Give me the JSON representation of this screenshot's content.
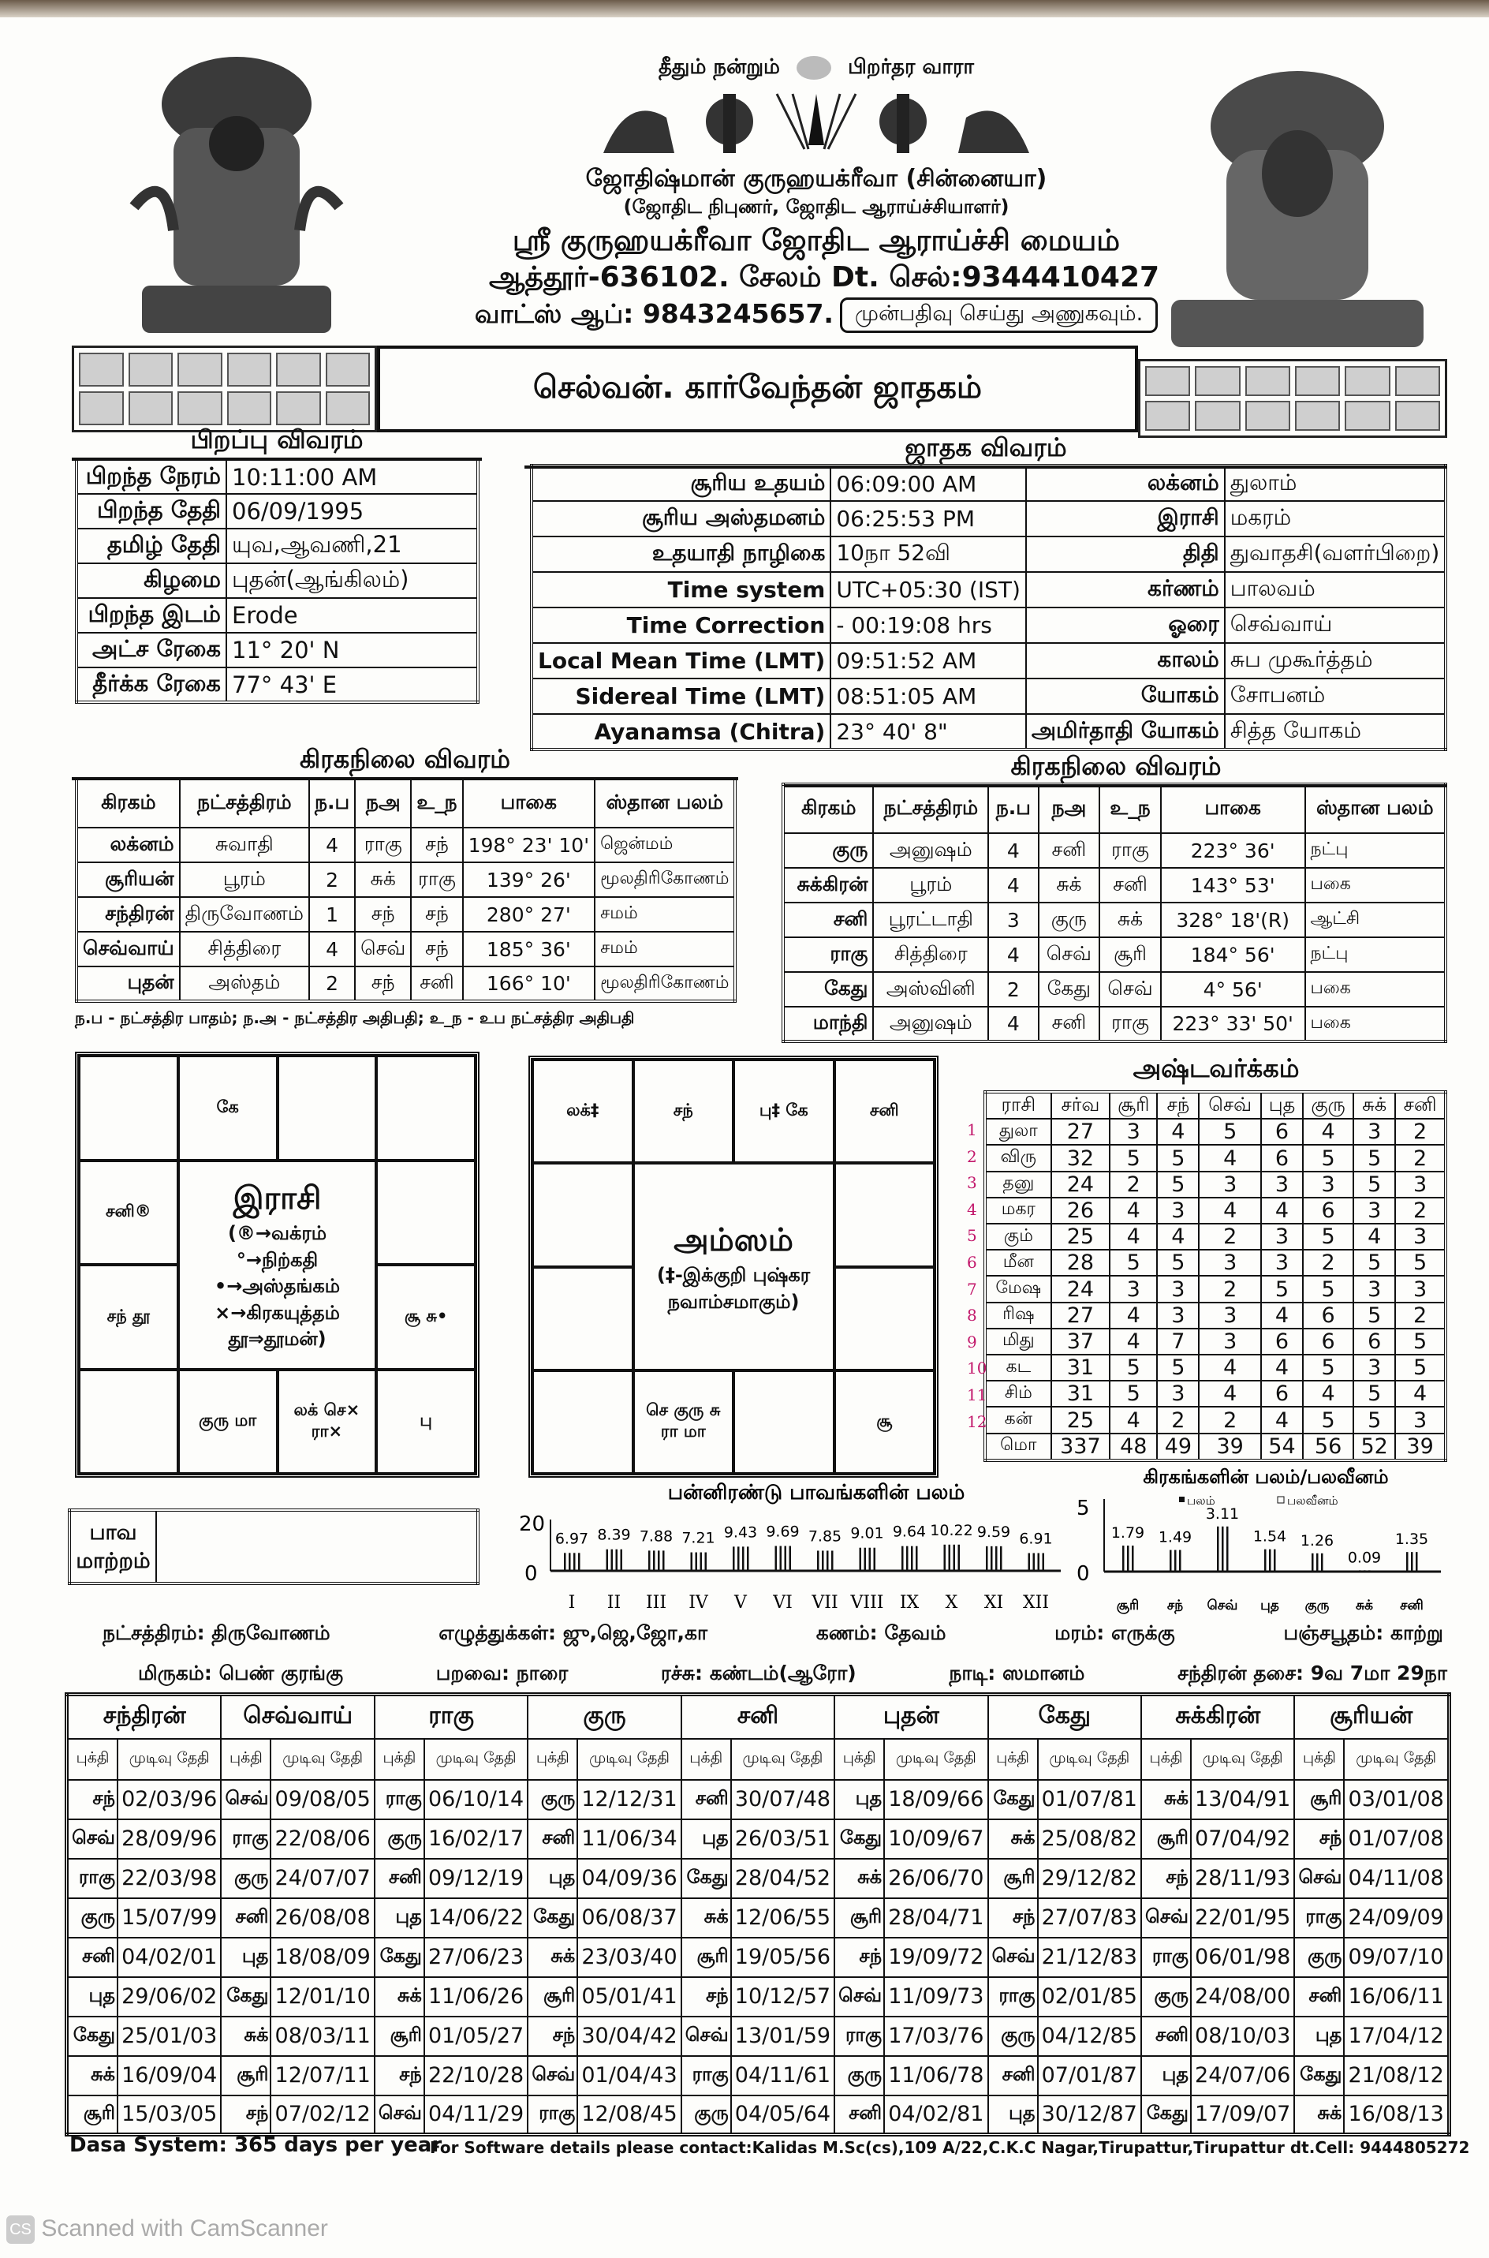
{
  "header": {
    "motto_left": "தீதும் நன்றும்",
    "motto_right": "பிறர்தர வாரா",
    "astrologer": "ஜோதிஷ்மான் குருஹயக்ரீவா (சின்னையா)",
    "qualifications": "(ஜோதிட நிபுணர், ஜோதிட ஆராய்ச்சியாளர்)",
    "center_name": "ஸ்ரீ குருஹயக்ரீவா ஜோதிட ஆராய்ச்சி மையம்",
    "address": "ஆத்தூர்-636102. சேலம் Dt. செல்:9344410427",
    "whatsapp": "வாட்ஸ் ஆப்: 9843245657.",
    "appointment_note": "முன்பதிவு செய்து அணுகவும்."
  },
  "title": "செல்வன். கார்வேந்தன் ஜாதகம்",
  "birth": {
    "heading": "பிறப்பு விவரம்",
    "rows": [
      [
        "பிறந்த நேரம்",
        "10:11:00 AM"
      ],
      [
        "பிறந்த தேதி",
        "06/09/1995"
      ],
      [
        "தமிழ் தேதி",
        "யுவ,ஆவணி,21"
      ],
      [
        "கிழமை",
        "புதன்(ஆங்கிலம்)"
      ],
      [
        "பிறந்த இடம்",
        "Erode"
      ],
      [
        "அட்ச ரேகை",
        "11° 20' N"
      ],
      [
        "தீர்க்க ரேகை",
        "77° 43' E"
      ]
    ]
  },
  "jathaka": {
    "heading": "ஜாதக விவரம்",
    "rows": [
      [
        "சூரிய உதயம்",
        "06:09:00 AM",
        "லக்னம்",
        "துலாம்"
      ],
      [
        "சூரிய அஸ்தமனம்",
        "06:25:53 PM",
        "இராசி",
        "மகரம்"
      ],
      [
        "உதயாதி நாழிகை",
        "10நா 52வி",
        "திதி",
        "துவாதசி(வளர்பிறை)"
      ],
      [
        "Time system",
        "UTC+05:30 (IST)",
        "கர்ணம்",
        "பாலவம்"
      ],
      [
        "Time Correction",
        "- 00:19:08 hrs",
        "ஓரை",
        "செவ்வாய்"
      ],
      [
        "Local Mean Time (LMT)",
        "09:51:52 AM",
        "காலம்",
        "சுப முகூர்த்தம்"
      ],
      [
        "Sidereal Time (LMT)",
        "08:51:05 AM",
        "யோகம்",
        "சோபனம்"
      ],
      [
        "Ayanamsa (Chitra)",
        "23° 40' 8\"",
        "அமிர்தாதி யோகம்",
        "சித்த யோகம்"
      ]
    ]
  },
  "graha_left": {
    "heading": "கிரகநிலை விவரம்",
    "columns": [
      "கிரகம்",
      "நட்சத்திரம்",
      "ந.ப",
      "நஅ",
      "உ_ந",
      "பாகை",
      "ஸ்தான பலம்"
    ],
    "rows": [
      [
        "லக்னம்",
        "சுவாதி",
        "4",
        "ராகு",
        "சந்",
        "198° 23' 10'",
        "ஜென்மம்"
      ],
      [
        "சூரியன்",
        "பூரம்",
        "2",
        "சுக்",
        "ராகு",
        "139° 26'",
        "மூலதிரிகோணம்"
      ],
      [
        "சந்திரன்",
        "திருவோணம்",
        "1",
        "சந்",
        "சந்",
        "280° 27'",
        "சமம்"
      ],
      [
        "செவ்வாய்",
        "சித்திரை",
        "4",
        "செவ்",
        "சந்",
        "185° 36'",
        "சமம்"
      ],
      [
        "புதன்",
        "அஸ்தம்",
        "2",
        "சந்",
        "சனி",
        "166° 10'",
        "மூலதிரிகோணம்"
      ]
    ],
    "footnote": "ந.ப - நட்சத்திர பாதம்; ந.அ - நட்சத்திர அதிபதி; உ_ந - உப நட்சத்திர அதிபதி"
  },
  "graha_right": {
    "heading": "கிரகநிலை விவரம்",
    "columns": [
      "கிரகம்",
      "நட்சத்திரம்",
      "ந.ப",
      "நஅ",
      "உ_ந",
      "பாகை",
      "ஸ்தான பலம்"
    ],
    "rows": [
      [
        "குரு",
        "அனுஷம்",
        "4",
        "சனி",
        "ராகு",
        "223° 36'",
        "நட்பு"
      ],
      [
        "சுக்கிரன்",
        "பூரம்",
        "4",
        "சுக்",
        "சனி",
        "143° 53'",
        "பகை"
      ],
      [
        "சனி",
        "பூரட்டாதி",
        "3",
        "குரு",
        "சுக்",
        "328° 18'(R)",
        "ஆட்சி"
      ],
      [
        "ராகு",
        "சித்திரை",
        "4",
        "செவ்",
        "சூரி",
        "184° 56'",
        "நட்பு"
      ],
      [
        "கேது",
        "அஸ்வினி",
        "2",
        "கேது",
        "செவ்",
        "4° 56'",
        "பகை"
      ],
      [
        "மாந்தி",
        "அனுஷம்",
        "4",
        "சனி",
        "ராகு",
        "223° 33' 50'",
        "பகை"
      ]
    ]
  },
  "rasi": {
    "title": "இராசி",
    "legend": [
      "(®→வக்ரம்",
      "°→நிற்கதி",
      "•→அஸ்தங்கம்",
      "×→கிரகயுத்தம்",
      "தூ⇒தூமன்)"
    ],
    "houses": [
      "கே",
      "",
      "",
      "",
      "சூ சு•",
      "பு",
      "லக் செ× ரா×",
      "குரு மா",
      "",
      "சந் தூ",
      "சனி®",
      ""
    ]
  },
  "amsam": {
    "title": "அம்ஸம்",
    "legend": [
      "(‡-இக்குறி புஷ்கர",
      "நவாம்சமாகும்)"
    ],
    "houses": [
      "சந்",
      "பு‡ கே",
      "சனி",
      "",
      "",
      "சூ",
      "",
      "செ குரு சு ரா மா",
      "",
      "",
      "",
      "லக்‡"
    ]
  },
  "ashtavarga": {
    "heading": "அஷ்டவர்க்கம்",
    "columns": [
      "ராசி",
      "சர்வ",
      "சூரி",
      "சந்",
      "செவ்",
      "புத",
      "குரு",
      "சுக்",
      "சனி"
    ],
    "rows": [
      [
        "துலா",
        "27",
        "3",
        "4",
        "5",
        "6",
        "4",
        "3",
        "2"
      ],
      [
        "விரு",
        "32",
        "5",
        "5",
        "4",
        "6",
        "5",
        "5",
        "2"
      ],
      [
        "தனு",
        "24",
        "2",
        "5",
        "3",
        "3",
        "3",
        "5",
        "3"
      ],
      [
        "மகர",
        "26",
        "4",
        "3",
        "4",
        "4",
        "6",
        "3",
        "2"
      ],
      [
        "கும்",
        "25",
        "4",
        "4",
        "2",
        "3",
        "5",
        "4",
        "3"
      ],
      [
        "மீன",
        "28",
        "5",
        "5",
        "3",
        "3",
        "2",
        "5",
        "5"
      ],
      [
        "மேஷ",
        "24",
        "3",
        "3",
        "2",
        "5",
        "5",
        "3",
        "3"
      ],
      [
        "ரிஷ",
        "27",
        "4",
        "3",
        "3",
        "4",
        "6",
        "5",
        "2"
      ],
      [
        "மிது",
        "37",
        "4",
        "7",
        "3",
        "6",
        "6",
        "6",
        "5"
      ],
      [
        "கட",
        "31",
        "5",
        "5",
        "4",
        "4",
        "5",
        "3",
        "5"
      ],
      [
        "சிம்",
        "31",
        "5",
        "3",
        "4",
        "6",
        "4",
        "5",
        "4"
      ],
      [
        "கன்",
        "25",
        "4",
        "2",
        "2",
        "4",
        "5",
        "5",
        "3"
      ],
      [
        "மொ",
        "337",
        "48",
        "49",
        "39",
        "54",
        "56",
        "52",
        "39"
      ]
    ],
    "handwritten_row_numbers": [
      "1",
      "2",
      "3",
      "4",
      "5",
      "6",
      "7",
      "8",
      "9",
      "10",
      "11",
      "12"
    ],
    "handwritten_color": "#c2186b"
  },
  "bhava_maatram": {
    "label_line1": "பாவ",
    "label_line2": "மாற்றம்",
    "value": ""
  },
  "chart_data": [
    {
      "type": "bar",
      "title": "பன்னிரண்டு பாவங்களின் பலம்",
      "categories": [
        "I",
        "II",
        "III",
        "IV",
        "V",
        "VI",
        "VII",
        "VIII",
        "IX",
        "X",
        "XI",
        "XII"
      ],
      "values": [
        6.97,
        8.39,
        7.88,
        7.21,
        9.43,
        9.69,
        7.85,
        9.01,
        9.64,
        10.22,
        9.59,
        6.91
      ],
      "data_labels": [
        "6.97",
        "8.39",
        "7.88",
        "7.21",
        "9.43",
        "9.69",
        "7.85",
        "9.01",
        "9.64",
        "10.22",
        "9.59",
        "6.91"
      ],
      "yticks": [
        "0",
        "20"
      ],
      "ylim": [
        0,
        20
      ]
    },
    {
      "type": "bar",
      "title": "கிரகங்களின் பலம்/பலவீனம்",
      "legend": [
        "பலம்",
        "பலவீனம்"
      ],
      "legend_placement": "top",
      "categories": [
        "சூரி",
        "சந்",
        "செவ்",
        "புத",
        "குரு",
        "சுக்",
        "சனி"
      ],
      "values": [
        1.79,
        1.49,
        3.11,
        1.54,
        1.26,
        0.09,
        1.35
      ],
      "data_labels": [
        "1.79",
        "1.49",
        "3.11",
        "1.54",
        "1.26",
        "0.09",
        "1.35"
      ],
      "yticks": [
        "0",
        "5"
      ],
      "ylim": [
        0,
        5
      ]
    }
  ],
  "info": {
    "line1": [
      "நட்சத்திரம்: திருவோணம்",
      "எழுத்துக்கள்: ஜு,ஜெ,ஜோ,கா",
      "கணம்: தேவம்",
      "மரம்: எருக்கு",
      "பஞ்சபூதம்: காற்று"
    ],
    "line2": [
      "மிருகம்: பெண் குரங்கு",
      "பறவை: நாரை",
      "ரச்சு: கண்டம்(ஆரோ)",
      "நாடி: ஸமானம்",
      "சந்திரன் தசை: 9வ 7மா 29நா"
    ]
  },
  "dasa": {
    "sub_bhukti": "புக்தி",
    "sub_date": "முடிவு தேதி",
    "columns": [
      {
        "name": "சந்திரன்",
        "rows": [
          [
            "சந்",
            "02/03/96"
          ],
          [
            "செவ்",
            "28/09/96"
          ],
          [
            "ராகு",
            "22/03/98"
          ],
          [
            "குரு",
            "15/07/99"
          ],
          [
            "சனி",
            "04/02/01"
          ],
          [
            "புத",
            "29/06/02"
          ],
          [
            "கேது",
            "25/01/03"
          ],
          [
            "சுக்",
            "16/09/04"
          ],
          [
            "சூரி",
            "15/03/05"
          ]
        ]
      },
      {
        "name": "செவ்வாய்",
        "rows": [
          [
            "செவ்",
            "09/08/05"
          ],
          [
            "ராகு",
            "22/08/06"
          ],
          [
            "குரு",
            "24/07/07"
          ],
          [
            "சனி",
            "26/08/08"
          ],
          [
            "புத",
            "18/08/09"
          ],
          [
            "கேது",
            "12/01/10"
          ],
          [
            "சுக்",
            "08/03/11"
          ],
          [
            "சூரி",
            "12/07/11"
          ],
          [
            "சந்",
            "07/02/12"
          ]
        ]
      },
      {
        "name": "ராகு",
        "rows": [
          [
            "ராகு",
            "06/10/14"
          ],
          [
            "குரு",
            "16/02/17"
          ],
          [
            "சனி",
            "09/12/19"
          ],
          [
            "புத",
            "14/06/22"
          ],
          [
            "கேது",
            "27/06/23"
          ],
          [
            "சுக்",
            "11/06/26"
          ],
          [
            "சூரி",
            "01/05/27"
          ],
          [
            "சந்",
            "22/10/28"
          ],
          [
            "செவ்",
            "04/11/29"
          ]
        ]
      },
      {
        "name": "குரு",
        "rows": [
          [
            "குரு",
            "12/12/31"
          ],
          [
            "சனி",
            "11/06/34"
          ],
          [
            "புத",
            "04/09/36"
          ],
          [
            "கேது",
            "06/08/37"
          ],
          [
            "சுக்",
            "23/03/40"
          ],
          [
            "சூரி",
            "05/01/41"
          ],
          [
            "சந்",
            "30/04/42"
          ],
          [
            "செவ்",
            "01/04/43"
          ],
          [
            "ராகு",
            "12/08/45"
          ]
        ]
      },
      {
        "name": "சனி",
        "rows": [
          [
            "சனி",
            "30/07/48"
          ],
          [
            "புத",
            "26/03/51"
          ],
          [
            "கேது",
            "28/04/52"
          ],
          [
            "சுக்",
            "12/06/55"
          ],
          [
            "சூரி",
            "19/05/56"
          ],
          [
            "சந்",
            "10/12/57"
          ],
          [
            "செவ்",
            "13/01/59"
          ],
          [
            "ராகு",
            "04/11/61"
          ],
          [
            "குரு",
            "04/05/64"
          ]
        ]
      },
      {
        "name": "புதன்",
        "rows": [
          [
            "புத",
            "18/09/66"
          ],
          [
            "கேது",
            "10/09/67"
          ],
          [
            "சுக்",
            "26/06/70"
          ],
          [
            "சூரி",
            "28/04/71"
          ],
          [
            "சந்",
            "19/09/72"
          ],
          [
            "செவ்",
            "11/09/73"
          ],
          [
            "ராகு",
            "17/03/76"
          ],
          [
            "குரு",
            "11/06/78"
          ],
          [
            "சனி",
            "04/02/81"
          ]
        ]
      },
      {
        "name": "கேது",
        "rows": [
          [
            "கேது",
            "01/07/81"
          ],
          [
            "சுக்",
            "25/08/82"
          ],
          [
            "சூரி",
            "29/12/82"
          ],
          [
            "சந்",
            "27/07/83"
          ],
          [
            "செவ்",
            "21/12/83"
          ],
          [
            "ராகு",
            "02/01/85"
          ],
          [
            "குரு",
            "04/12/85"
          ],
          [
            "சனி",
            "07/01/87"
          ],
          [
            "புத",
            "30/12/87"
          ]
        ]
      },
      {
        "name": "சுக்கிரன்",
        "rows": [
          [
            "சுக்",
            "13/04/91"
          ],
          [
            "சூரி",
            "07/04/92"
          ],
          [
            "சந்",
            "28/11/93"
          ],
          [
            "செவ்",
            "22/01/95"
          ],
          [
            "ராகு",
            "06/01/98"
          ],
          [
            "குரு",
            "24/08/00"
          ],
          [
            "சனி",
            "08/10/03"
          ],
          [
            "புத",
            "24/07/06"
          ],
          [
            "கேது",
            "17/09/07"
          ]
        ]
      },
      {
        "name": "சூரியன்",
        "rows": [
          [
            "சூரி",
            "03/01/08"
          ],
          [
            "சந்",
            "01/07/08"
          ],
          [
            "செவ்",
            "04/11/08"
          ],
          [
            "ராகு",
            "24/09/09"
          ],
          [
            "குரு",
            "09/07/10"
          ],
          [
            "சனி",
            "16/06/11"
          ],
          [
            "புத",
            "17/04/12"
          ],
          [
            "கேது",
            "21/08/12"
          ],
          [
            "சுக்",
            "16/08/13"
          ]
        ]
      }
    ]
  },
  "footer": {
    "dasa_system": "Dasa System: 365 days per year",
    "software_contact": "For Software details please contact:Kalidas M.Sc(cs),109 A/22,C.K.C Nagar,Tirupattur,Tirupattur dt.Cell: 9444805272",
    "scanner_watermark": "Scanned with CamScanner"
  }
}
